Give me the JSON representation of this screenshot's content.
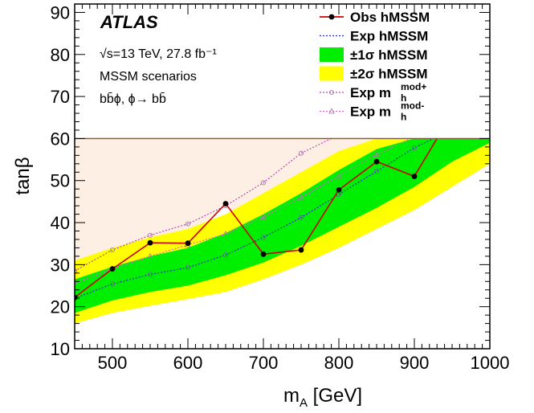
{
  "chart_data": {
    "type": "line",
    "xlabel": "m_A [GeV]",
    "ylabel": "tanβ",
    "xlim": [
      450,
      1000
    ],
    "ylim": [
      10,
      92
    ],
    "x_ticks": [
      500,
      600,
      700,
      800,
      900,
      1000
    ],
    "y_ticks": [
      10,
      20,
      30,
      40,
      50,
      60,
      70,
      80,
      90
    ],
    "plot_cap_y": 60,
    "grid": false,
    "legend_position": "top-right",
    "experiment": "ATLAS",
    "annotations": [
      "√s=13 TeV, 27.8 fb⁻¹",
      "MSSM scenarios",
      "bb̄ϕ, ϕ→ bb̄"
    ],
    "excluded_region": {
      "color": "#fdefe4",
      "upper": 60,
      "lower_x": [
        450,
        500,
        550,
        600,
        650,
        700,
        750,
        800,
        850,
        900,
        930
      ],
      "lower_y": [
        22.2,
        29,
        35.2,
        35.1,
        44.5,
        32.5,
        33.5,
        47.8,
        54.5,
        51,
        60
      ]
    },
    "bands": [
      {
        "name": "±2σ  hMSSM",
        "color": "#ffff00",
        "x": [
          450,
          500,
          550,
          600,
          650,
          700,
          750,
          800,
          850,
          900,
          950,
          1000
        ],
        "low": [
          16,
          18.5,
          20.2,
          21.8,
          23.5,
          26.5,
          30,
          34,
          38.5,
          43,
          48.5,
          54
        ],
        "high": [
          31,
          34,
          36.5,
          38.5,
          42,
          47,
          52,
          57,
          60,
          60,
          60,
          60
        ]
      },
      {
        "name": "±1σ  hMSSM",
        "color": "#00ee00",
        "x": [
          450,
          500,
          550,
          600,
          650,
          700,
          750,
          800,
          850,
          900,
          950,
          1000
        ],
        "low": [
          18.5,
          21.5,
          23.5,
          25,
          27.5,
          30.5,
          34.5,
          39,
          43.5,
          48.5,
          54.5,
          59
        ],
        "high": [
          26.5,
          29.5,
          32,
          34,
          37.5,
          42,
          47,
          52.5,
          57.5,
          60,
          60,
          60
        ]
      }
    ],
    "series": [
      {
        "name": "Exp  hMSSM",
        "style": "dotted",
        "color": "#1f2fbf",
        "markers": "open-circle",
        "x": [
          450,
          500,
          550,
          600,
          650,
          700,
          750,
          800,
          850,
          900,
          925
        ],
        "y": [
          22,
          25.4,
          27.7,
          29.3,
          32.3,
          36.5,
          41.2,
          46.7,
          52.2,
          57.8,
          60
        ]
      },
      {
        "name": "Exp  m_h^mod+",
        "style": "dotted",
        "color": "#c040c0",
        "markers": "open-circle",
        "x": [
          450,
          500,
          550,
          600,
          650,
          700,
          750,
          790
        ],
        "y": [
          28.5,
          33.5,
          37,
          39.7,
          44,
          49.5,
          56.5,
          60
        ]
      },
      {
        "name": "Exp  m_h^mod-",
        "style": "dotted",
        "color": "#e060e0",
        "markers": "open-triangle",
        "x": [
          450,
          500,
          550,
          600,
          650,
          700,
          750,
          800,
          850,
          895
        ],
        "y": [
          25.5,
          29,
          32,
          34.7,
          37.3,
          41.3,
          46,
          51,
          56.2,
          60
        ]
      },
      {
        "name": "Obs  hMSSM",
        "style": "solid",
        "color": "#cc0000",
        "markers": "filled-circle",
        "x": [
          450,
          500,
          550,
          600,
          650,
          700,
          750,
          800,
          850,
          900,
          930
        ],
        "y": [
          22.2,
          29,
          35.2,
          35.1,
          44.5,
          32.5,
          33.5,
          47.8,
          54.5,
          51,
          60
        ]
      }
    ],
    "legend": [
      {
        "label": "Obs  hMSSM",
        "kind": "line-marker",
        "color": "#cc0000"
      },
      {
        "label": "Exp  hMSSM",
        "kind": "dotted",
        "color": "#1f2fbf"
      },
      {
        "label": "±1σ  hMSSM",
        "kind": "box",
        "color": "#00ee00"
      },
      {
        "label": "±2σ  hMSSM",
        "kind": "box",
        "color": "#ffff00"
      },
      {
        "label": "Exp  m",
        "sup": "mod+",
        "sub": "h",
        "kind": "dotted-circle",
        "color": "#c040c0"
      },
      {
        "label": "Exp  m",
        "sup": "mod-",
        "sub": "h",
        "kind": "dotted-triangle",
        "color": "#e060e0"
      }
    ]
  }
}
